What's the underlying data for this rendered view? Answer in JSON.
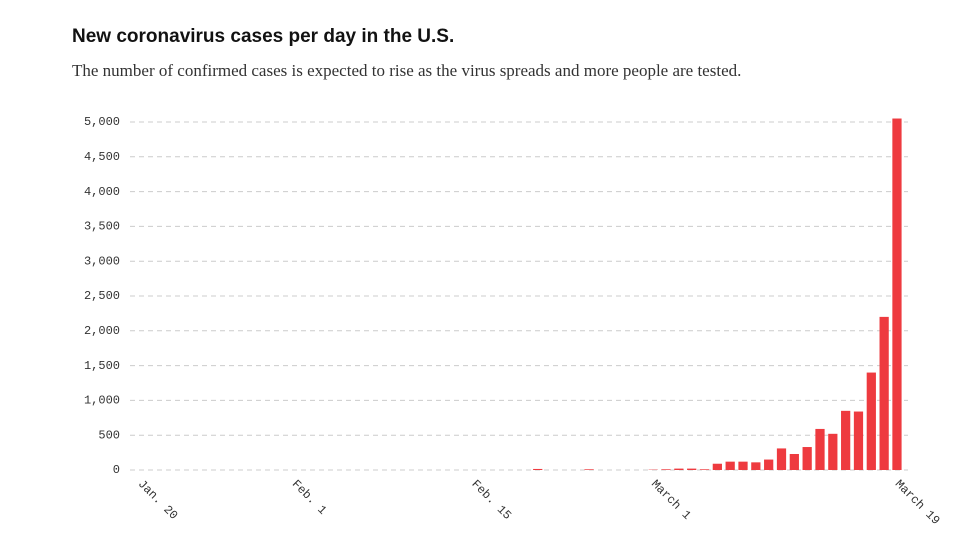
{
  "chart_data": {
    "type": "bar",
    "title": "New coronavirus cases per day in the U.S.",
    "subtitle": "The number of confirmed cases is expected to rise as the virus spreads and more people are tested.",
    "categories": [
      "Jan. 20",
      null,
      null,
      null,
      null,
      null,
      null,
      null,
      null,
      null,
      null,
      null,
      "Feb. 1",
      null,
      null,
      null,
      null,
      null,
      null,
      null,
      null,
      null,
      null,
      null,
      null,
      null,
      "Feb. 15",
      null,
      null,
      null,
      null,
      null,
      null,
      null,
      null,
      null,
      null,
      null,
      null,
      null,
      "March 1",
      null,
      null,
      null,
      null,
      null,
      null,
      null,
      null,
      null,
      null,
      null,
      null,
      null,
      null,
      null,
      null,
      null,
      null,
      "March 19"
    ],
    "values": [
      0,
      0,
      0,
      0,
      0,
      0,
      0,
      0,
      0,
      0,
      0,
      0,
      0,
      0,
      0,
      0,
      0,
      0,
      0,
      0,
      0,
      0,
      0,
      0,
      0,
      0,
      0,
      0,
      0,
      0,
      0,
      15,
      0,
      0,
      0,
      10,
      0,
      0,
      0,
      0,
      5,
      10,
      20,
      20,
      10,
      90,
      120,
      120,
      110,
      150,
      310,
      230,
      330,
      590,
      520,
      850,
      840,
      1400,
      2200,
      5050
    ],
    "color": "#ee3a3f",
    "ylim": [
      0,
      5100
    ],
    "yticks": [
      0,
      500,
      {
        "value": 1000,
        "label": "1,000"
      },
      {
        "value": 1500,
        "label": "1,500"
      },
      {
        "value": 2000,
        "label": "2,000"
      },
      {
        "value": 2500,
        "label": "2,500"
      },
      {
        "value": 3000,
        "label": "3,000"
      },
      {
        "value": 3500,
        "label": "3,500"
      },
      {
        "value": 4000,
        "label": "4,000"
      },
      {
        "value": 4500,
        "label": "4,500"
      },
      {
        "value": 5000,
        "label": "5,000"
      }
    ],
    "grid": true
  }
}
